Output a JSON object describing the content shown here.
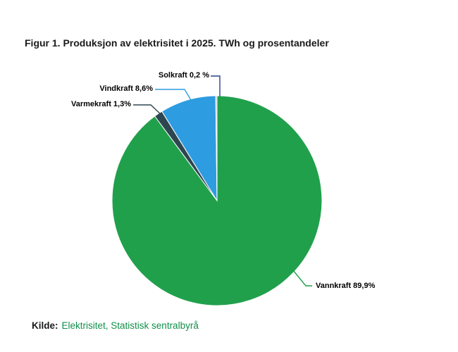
{
  "figure": {
    "title": "Figur 1. Produksjon av elektrisitet i 2025. TWh og prosentandeler",
    "source": {
      "prefix": "Kilde:",
      "text": "Elektrisitet, Statistisk sentralbyrå",
      "link_color": "#0f9048"
    }
  },
  "chart_data": {
    "type": "pie",
    "title": "Figur 1. Produksjon av elektrisitet i 2025. TWh og prosentandeler",
    "unit": "percent",
    "start_angle_deg": 0,
    "direction": "clockwise",
    "legend": "none",
    "data_labels": "outside-with-connector-lines",
    "slices": [
      {
        "name": "Vannkraft",
        "value": 89.9,
        "label": "Vannkraft 89,9%",
        "color": "#21a04c",
        "connector_color": "#21a04c"
      },
      {
        "name": "Varmekraft",
        "value": 1.3,
        "label": "Varmekraft 1,3%",
        "color": "#2d4650",
        "connector_color": "#2d4650"
      },
      {
        "name": "Vindkraft",
        "value": 8.6,
        "label": "Vindkraft 8,6%",
        "color": "#2e9ce0",
        "connector_color": "#2e9ce0"
      },
      {
        "name": "Solkraft",
        "value": 0.2,
        "label": "Solkraft 0,2 %",
        "color": "#b5bac7",
        "connector_color": "#2d3e8e"
      }
    ]
  }
}
